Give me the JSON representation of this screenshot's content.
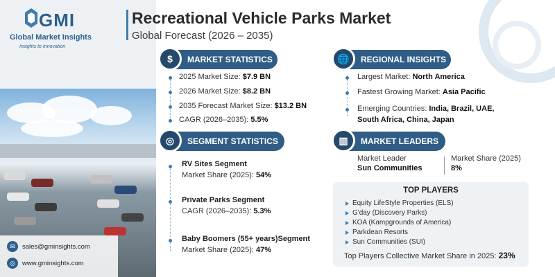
{
  "brand": {
    "name": "GMI",
    "full_name": "Global Market Insights",
    "tagline": "Insights to Innovation"
  },
  "header": {
    "title": "Recreational Vehicle Parks Market",
    "subtitle": "Global Forecast (2026 – 2035)"
  },
  "market_statistics": {
    "heading": "MARKET STATISTICS",
    "icon": "globe-dollar-icon",
    "items": [
      {
        "label": "2025 Market Size: ",
        "value": "$7.9 BN"
      },
      {
        "label": "2026 Market Size: ",
        "value": "$8.2 BN"
      },
      {
        "label": "2035 Forecast Market Size: ",
        "value": "$13.2 BN"
      },
      {
        "label": "CAGR (2026–2035): ",
        "value": "5.5%"
      }
    ]
  },
  "segment_statistics": {
    "heading": "SEGMENT STATISTICS",
    "icon": "target-icon",
    "items": [
      {
        "name": "RV Sites Segment",
        "label": "Market Share (2025): ",
        "value": "54%"
      },
      {
        "name": "Private Parks Segment",
        "label": "CAGR (2026–2035): ",
        "value": "5.3%"
      },
      {
        "name": "Baby Boomers (55+ years)Segment",
        "label": "Market Share (2025): ",
        "value": "47%"
      }
    ]
  },
  "regional_insights": {
    "heading": "REGIONAL INSIGHTS",
    "icon": "globe-icon",
    "largest_label": "Largest Market: ",
    "largest_value": "North America",
    "fastest_label": "Fastest Growing Market: ",
    "fastest_value": "Asia Pacific",
    "emerging_label": "Emerging Countries: ",
    "emerging_value_1": "India, Brazil, UAE,",
    "emerging_value_2": "South Africa, China, Japan"
  },
  "market_leaders": {
    "heading": "MARKET LEADERS",
    "icon": "buildings-chart-icon",
    "leader_label": "Market Leader",
    "leader_value": "Sun Communities",
    "share_label": "Market Share (2025)",
    "share_value": "8%"
  },
  "top_players": {
    "heading": "TOP PLAYERS",
    "items": [
      "Equity LifeStyle Properties (ELS)",
      "G'day (Discovery Parks)",
      "KOA (Kampgrounds of America)",
      "Parkdean Resorts",
      "Sun Communities (SUI)"
    ],
    "collective_label": "Top Players Collective Market Share in 2025: ",
    "collective_value": "23%"
  },
  "contact": {
    "email": "sales@gminsights.com",
    "website": "www.gminsights.com"
  },
  "colors": {
    "primary": "#2f5d86",
    "accent": "#3e7cb1",
    "panel": "#eef2f5"
  }
}
